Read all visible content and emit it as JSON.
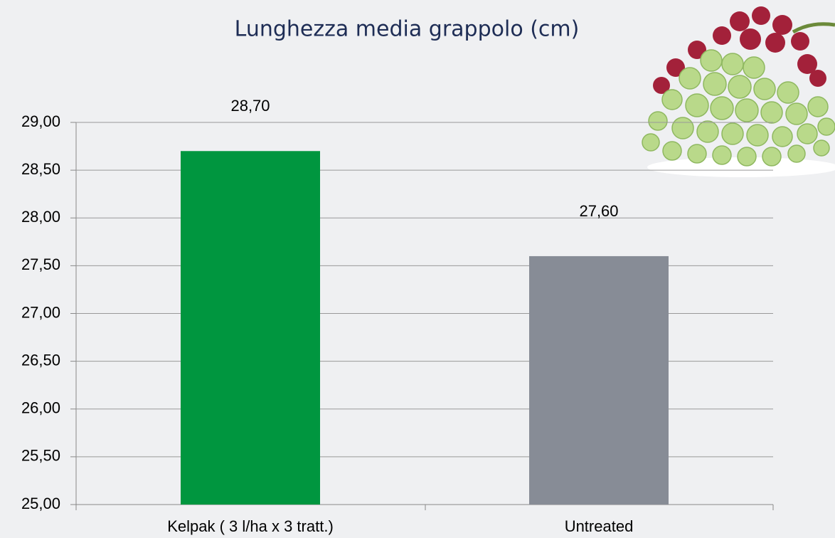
{
  "chart_data": {
    "type": "bar",
    "title": "Lunghezza media grappolo (cm)",
    "categories": [
      "Kelpak ( 3 l/ha x 3 tratt.)",
      "Untreated"
    ],
    "values": [
      28.7,
      27.6
    ],
    "value_labels": [
      "28,70",
      "27,60"
    ],
    "colors": [
      "#00963f",
      "#878c96"
    ],
    "ylim": [
      25,
      29
    ],
    "yticks": [
      {
        "value": 25,
        "label": "25,00"
      },
      {
        "value": 25.5,
        "label": "25,50"
      },
      {
        "value": 26,
        "label": "26,00"
      },
      {
        "value": 26.5,
        "label": "26,50"
      },
      {
        "value": 27,
        "label": "27,00"
      },
      {
        "value": 27.5,
        "label": "27,50"
      },
      {
        "value": 28,
        "label": "28,00"
      },
      {
        "value": 28.5,
        "label": "28,50"
      },
      {
        "value": 29,
        "label": "29,00"
      }
    ],
    "grid": true
  }
}
